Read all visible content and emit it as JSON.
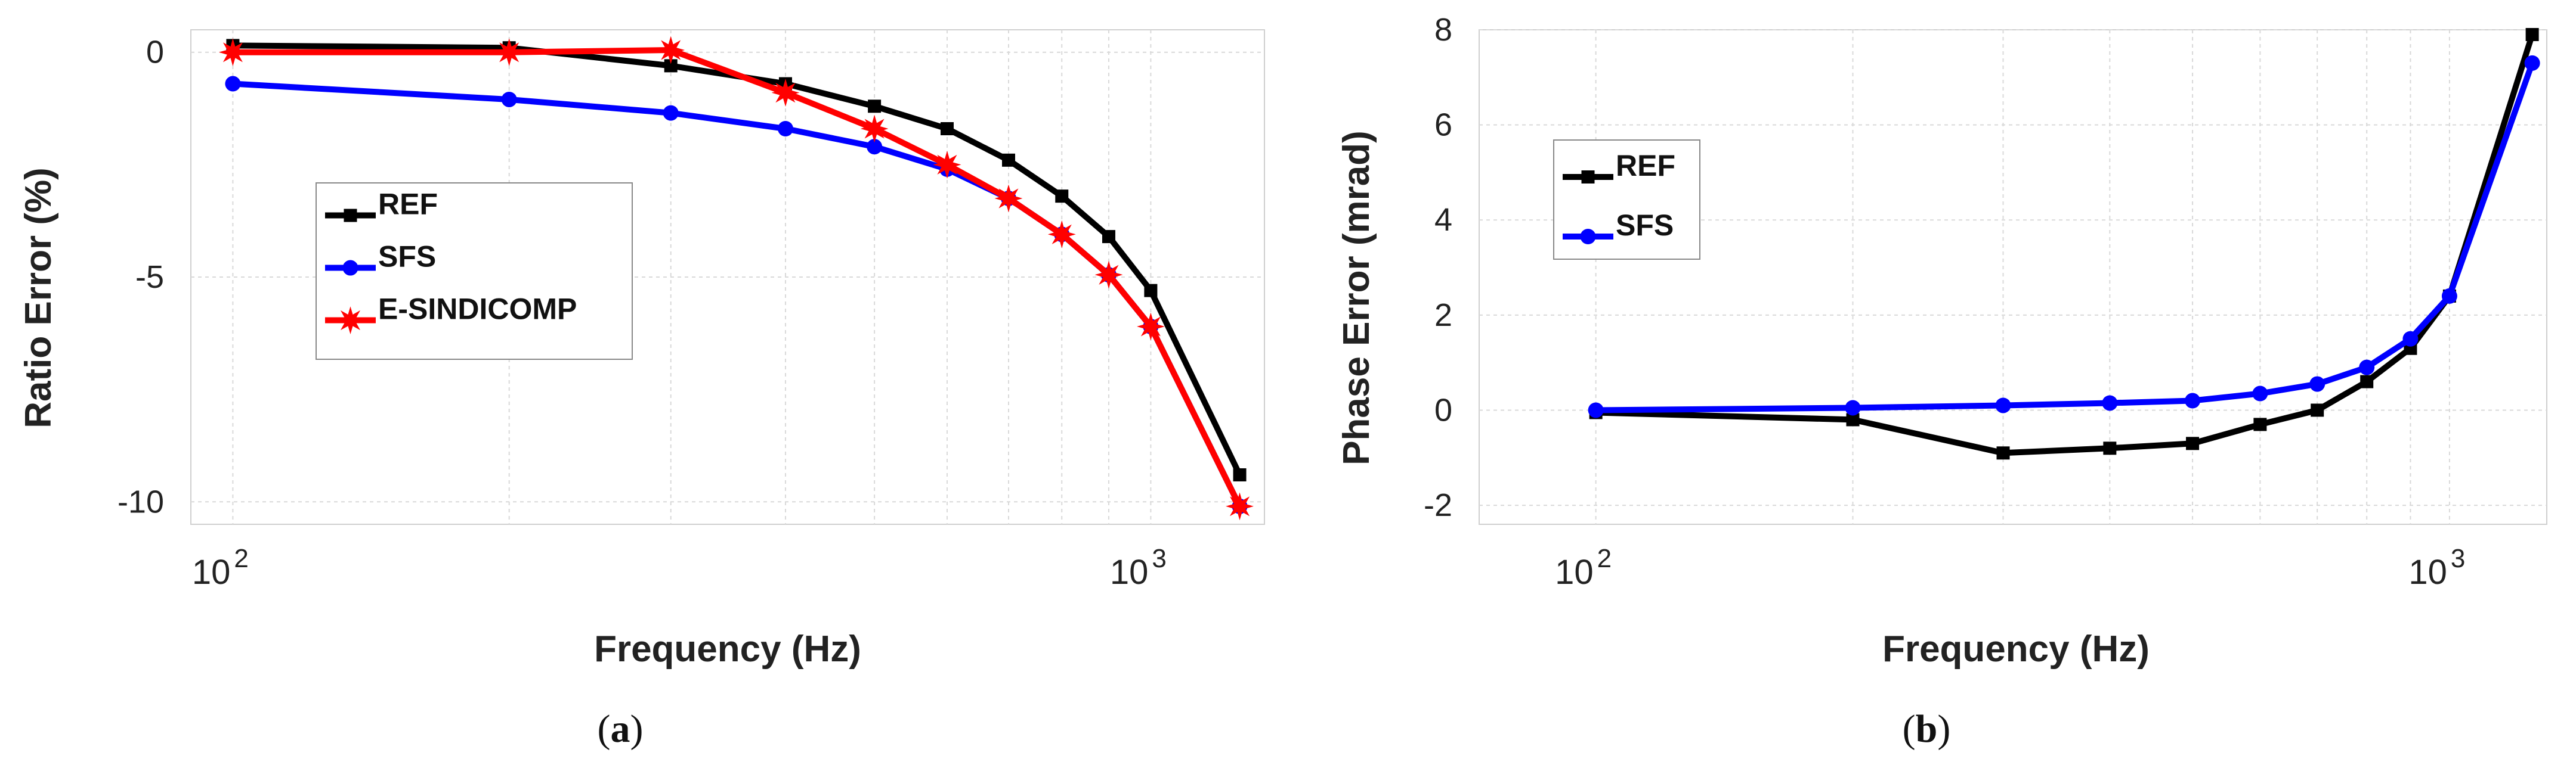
{
  "chart_data": [
    {
      "type": "line",
      "panel": "a",
      "caption_open": "(",
      "caption_letter": "a",
      "caption_close": ")",
      "xlabel": "Frequency (Hz)",
      "ylabel": "Ratio Error (%)",
      "xscale": "log",
      "xlim": [
        90,
        1330
      ],
      "ylim": [
        -10.5,
        0.5
      ],
      "grid": true,
      "legend_position": "center-left",
      "x_ticks": [
        {
          "value": 100,
          "base": "10",
          "exp": "2"
        },
        {
          "value": 1000,
          "base": "10",
          "exp": "3"
        }
      ],
      "y_ticks": [
        {
          "value": 0,
          "label": "0"
        },
        {
          "value": -5,
          "label": "-5"
        },
        {
          "value": -10,
          "label": "-10"
        }
      ],
      "series": [
        {
          "name": "REF",
          "color": "#000000",
          "marker": "square",
          "x": [
            100,
            200,
            300,
            400,
            500,
            600,
            700,
            800,
            900,
            1000,
            1250
          ],
          "y": [
            0.15,
            0.1,
            -0.3,
            -0.7,
            -1.2,
            -1.7,
            -2.4,
            -3.2,
            -4.1,
            -5.3,
            -9.4
          ]
        },
        {
          "name": "SFS",
          "color": "#0000ff",
          "marker": "circle",
          "x": [
            100,
            200,
            300,
            400,
            500,
            600,
            700,
            800,
            900,
            1000,
            1250
          ],
          "y": [
            -0.7,
            -1.05,
            -1.35,
            -1.7,
            -2.1,
            -2.6,
            -3.25,
            -4.05,
            -4.95,
            -6.1,
            -10.1
          ]
        },
        {
          "name": "E-SINDICOMP",
          "color": "#ff0000",
          "marker": "star",
          "x": [
            100,
            200,
            300,
            400,
            500,
            600,
            700,
            800,
            900,
            1000,
            1250
          ],
          "y": [
            0.0,
            0.0,
            0.05,
            -0.9,
            -1.7,
            -2.5,
            -3.25,
            -4.05,
            -4.95,
            -6.1,
            -10.1
          ]
        }
      ]
    },
    {
      "type": "line",
      "panel": "b",
      "caption_open": "(",
      "caption_letter": "b",
      "caption_close": ")",
      "xlabel": "Frequency (Hz)",
      "ylabel": "Phase Error (mrad)",
      "xscale": "log",
      "xlim": [
        73,
        1300
      ],
      "ylim": [
        -2.4,
        8.0
      ],
      "grid": true,
      "legend_position": "top-left",
      "x_ticks": [
        {
          "value": 100,
          "base": "10",
          "exp": "2"
        },
        {
          "value": 1000,
          "base": "10",
          "exp": "3"
        }
      ],
      "y_ticks": [
        {
          "value": 8,
          "label": "8"
        },
        {
          "value": 6,
          "label": "6"
        },
        {
          "value": 4,
          "label": "4"
        },
        {
          "value": 2,
          "label": "2"
        },
        {
          "value": 0,
          "label": "0"
        },
        {
          "value": -2,
          "label": "-2"
        }
      ],
      "series": [
        {
          "name": "REF",
          "color": "#000000",
          "marker": "square",
          "x": [
            100,
            200,
            300,
            400,
            500,
            600,
            700,
            800,
            900,
            1000,
            1250
          ],
          "y": [
            -0.05,
            -0.2,
            -0.9,
            -0.8,
            -0.7,
            -0.3,
            0.0,
            0.6,
            1.3,
            2.4,
            7.9
          ]
        },
        {
          "name": "SFS",
          "color": "#0000ff",
          "marker": "circle",
          "x": [
            100,
            200,
            300,
            400,
            500,
            600,
            700,
            800,
            900,
            1000,
            1250
          ],
          "y": [
            0.0,
            0.05,
            0.1,
            0.15,
            0.2,
            0.35,
            0.55,
            0.9,
            1.5,
            2.4,
            7.3
          ]
        }
      ]
    }
  ]
}
